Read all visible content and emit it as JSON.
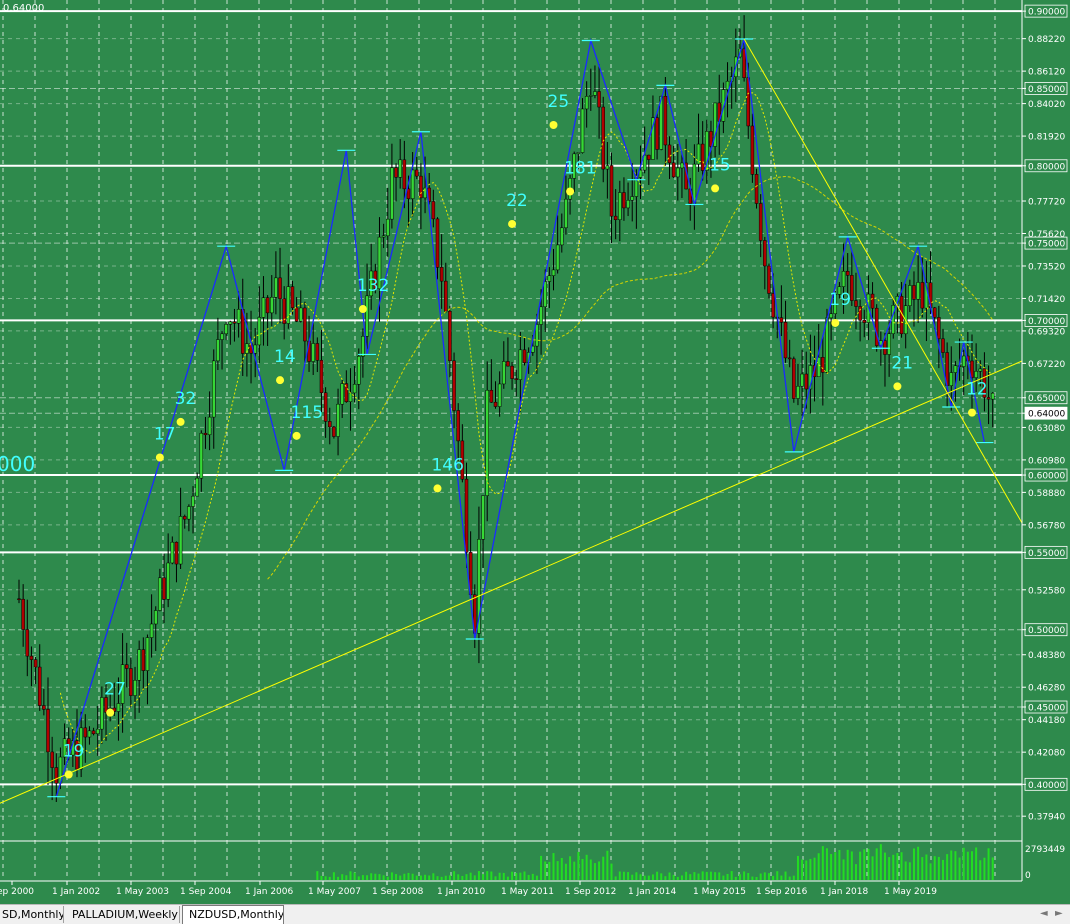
{
  "window": {
    "corner_label": "0.64000",
    "colors": {
      "background": "#2e8a4c",
      "grid": "#ffffff",
      "bull": "#36d836",
      "bear": "#b00000",
      "zigzag": "#1a2aff",
      "trend": "#ffff00",
      "label": "#40ffff",
      "current_price_box": "#ffffff"
    }
  },
  "price_axis": {
    "labels": [
      {
        "value": 0.9,
        "text": "0.90000",
        "boxed": true
      },
      {
        "value": 0.8822,
        "text": "0.88220",
        "boxed": false
      },
      {
        "value": 0.8612,
        "text": "0.86120",
        "boxed": false
      },
      {
        "value": 0.85,
        "text": "0.85000",
        "boxed": true
      },
      {
        "value": 0.8402,
        "text": "0.84020",
        "boxed": false
      },
      {
        "value": 0.8192,
        "text": "0.81920",
        "boxed": false
      },
      {
        "value": 0.8,
        "text": "0.80000",
        "boxed": true
      },
      {
        "value": 0.7772,
        "text": "0.77720",
        "boxed": false
      },
      {
        "value": 0.7562,
        "text": "0.75620",
        "boxed": false
      },
      {
        "value": 0.75,
        "text": "0.75000",
        "boxed": true
      },
      {
        "value": 0.7352,
        "text": "0.73520",
        "boxed": false
      },
      {
        "value": 0.7142,
        "text": "0.71420",
        "boxed": false
      },
      {
        "value": 0.7,
        "text": "0.70000",
        "boxed": true
      },
      {
        "value": 0.6932,
        "text": "0.69320",
        "boxed": false
      },
      {
        "value": 0.6722,
        "text": "0.67220",
        "boxed": false
      },
      {
        "value": 0.65,
        "text": "0.65000",
        "boxed": true
      },
      {
        "value": 0.64,
        "text": "0.64000",
        "boxed": true,
        "current": true
      },
      {
        "value": 0.6308,
        "text": "0.63080",
        "boxed": false
      },
      {
        "value": 0.6098,
        "text": "0.60980",
        "boxed": false
      },
      {
        "value": 0.6,
        "text": "0.60000",
        "boxed": true
      },
      {
        "value": 0.5888,
        "text": "0.58880",
        "boxed": false
      },
      {
        "value": 0.5678,
        "text": "0.56780",
        "boxed": false
      },
      {
        "value": 0.55,
        "text": "0.55000",
        "boxed": true
      },
      {
        "value": 0.5258,
        "text": "0.52580",
        "boxed": false
      },
      {
        "value": 0.5,
        "text": "0.50000",
        "boxed": true
      },
      {
        "value": 0.4838,
        "text": "0.48380",
        "boxed": false
      },
      {
        "value": 0.4628,
        "text": "0.46280",
        "boxed": false
      },
      {
        "value": 0.45,
        "text": "0.45000",
        "boxed": true
      },
      {
        "value": 0.4418,
        "text": "0.44180",
        "boxed": false
      },
      {
        "value": 0.4208,
        "text": "0.42080",
        "boxed": false
      },
      {
        "value": 0.4,
        "text": "0.40000",
        "boxed": true
      },
      {
        "value": 0.3794,
        "text": "0.37940",
        "boxed": false
      }
    ],
    "white_levels": [
      0.9,
      0.8,
      0.7,
      0.6,
      0.55,
      0.4
    ]
  },
  "volume_axis": {
    "max_label": "2793449",
    "zero_label": "0"
  },
  "time_axis": {
    "labels": [
      {
        "text": "ep 2000"
      },
      {
        "text": "1 Jan 2002"
      },
      {
        "text": "1 May 2003"
      },
      {
        "text": "1 Sep 2004"
      },
      {
        "text": "1 Jan 2006"
      },
      {
        "text": "1 May 2007"
      },
      {
        "text": "1 Sep 2008"
      },
      {
        "text": "1 Jan 2010"
      },
      {
        "text": "1 May 2011"
      },
      {
        "text": "1 Sep 2012"
      },
      {
        "text": "1 Jan 2014"
      },
      {
        "text": "1 May 2015"
      },
      {
        "text": "1 Sep 2016"
      },
      {
        "text": "1 Jan 2018"
      },
      {
        "text": "1 May 2019"
      }
    ]
  },
  "zigzag_labels": [
    {
      "text": "19",
      "date": "2001-01",
      "price": 0.418
    },
    {
      "text": "27",
      "date": "2001-11",
      "price": 0.458
    },
    {
      "text": "17",
      "date": "2002-11",
      "price": 0.623
    },
    {
      "text": "32",
      "date": "2003-04",
      "price": 0.646
    },
    {
      "text": "14",
      "date": "2005-04",
      "price": 0.673
    },
    {
      "text": "115",
      "date": "2005-08",
      "price": 0.637
    },
    {
      "text": "132",
      "date": "2006-12",
      "price": 0.719
    },
    {
      "text": "146",
      "date": "2008-06",
      "price": 0.603
    },
    {
      "text": "22",
      "date": "2009-12",
      "price": 0.774
    },
    {
      "text": "25",
      "date": "2010-10",
      "price": 0.838
    },
    {
      "text": "181",
      "date": "2011-02",
      "price": 0.795
    },
    {
      "text": "15",
      "date": "2014-01",
      "price": 0.797
    },
    {
      "text": "19",
      "date": "2016-06",
      "price": 0.71
    },
    {
      "text": "21",
      "date": "2017-09",
      "price": 0.669
    },
    {
      "text": "12",
      "date": "2019-03",
      "price": 0.652
    }
  ],
  "left_edge_label": "000",
  "tabs": [
    {
      "label": "SD,Monthly",
      "active": false
    },
    {
      "label": "PALLADIUM,Weekly",
      "active": false
    },
    {
      "label": "NZDUSD,Monthly",
      "active": true
    }
  ],
  "chart_data": {
    "type": "candlestick",
    "symbol": "NZDUSD",
    "timeframe": "Monthly",
    "y_range": [
      0.364,
      0.9072
    ],
    "current_price": 0.64,
    "zigzag_pivots": [
      [
        "2000-10",
        0.392
      ],
      [
        "2004-03",
        0.748
      ],
      [
        "2005-05",
        0.603
      ],
      [
        "2006-08",
        0.81
      ],
      [
        "2007-01",
        0.678
      ],
      [
        "2008-02",
        0.822
      ],
      [
        "2009-03",
        0.494
      ],
      [
        "2011-07",
        0.881
      ],
      [
        "2012-06",
        0.791
      ],
      [
        "2013-01",
        0.852
      ],
      [
        "2013-08",
        0.775
      ],
      [
        "2014-08",
        0.882
      ],
      [
        "2015-08",
        0.615
      ],
      [
        "2016-09",
        0.754
      ],
      [
        "2017-05",
        0.682
      ],
      [
        "2018-02",
        0.748
      ],
      [
        "2018-10",
        0.644
      ],
      [
        "2019-01",
        0.686
      ],
      [
        "2019-06",
        0.621
      ]
    ],
    "trend_lines": [
      {
        "from": [
          "1999-06",
          0.385
        ],
        "to": [
          "2020-05",
          0.676
        ]
      },
      {
        "from": [
          "2014-08",
          0.882
        ],
        "to": [
          "2020-05",
          0.56
        ]
      }
    ],
    "candles_note_keys": [
      "date",
      "open",
      "high",
      "low",
      "close"
    ],
    "anchors": [
      [
        "2000-01",
        0.52
      ],
      [
        "2000-10",
        0.41
      ],
      [
        "2001-06",
        0.43
      ],
      [
        "2002-06",
        0.48
      ],
      [
        "2003-06",
        0.58
      ],
      [
        "2004-03",
        0.71
      ],
      [
        "2004-09",
        0.68
      ],
      [
        "2005-03",
        0.72
      ],
      [
        "2005-10",
        0.69
      ],
      [
        "2006-05",
        0.63
      ],
      [
        "2006-12",
        0.69
      ],
      [
        "2007-07",
        0.79
      ],
      [
        "2008-02",
        0.79
      ],
      [
        "2008-07",
        0.73
      ],
      [
        "2009-03",
        0.51
      ],
      [
        "2009-06",
        0.64
      ],
      [
        "2010-06",
        0.7
      ],
      [
        "2011-01",
        0.77
      ],
      [
        "2011-07",
        0.86
      ],
      [
        "2011-12",
        0.77
      ],
      [
        "2012-06",
        0.8
      ],
      [
        "2012-12",
        0.83
      ],
      [
        "2013-06",
        0.78
      ],
      [
        "2013-12",
        0.82
      ],
      [
        "2014-07",
        0.87
      ],
      [
        "2015-01",
        0.74
      ],
      [
        "2015-08",
        0.65
      ],
      [
        "2016-02",
        0.67
      ],
      [
        "2016-09",
        0.73
      ],
      [
        "2017-05",
        0.69
      ],
      [
        "2017-12",
        0.71
      ],
      [
        "2018-03",
        0.72
      ],
      [
        "2018-10",
        0.66
      ],
      [
        "2019-02",
        0.68
      ],
      [
        "2019-06",
        0.66
      ],
      [
        "2019-08",
        0.64
      ]
    ]
  }
}
